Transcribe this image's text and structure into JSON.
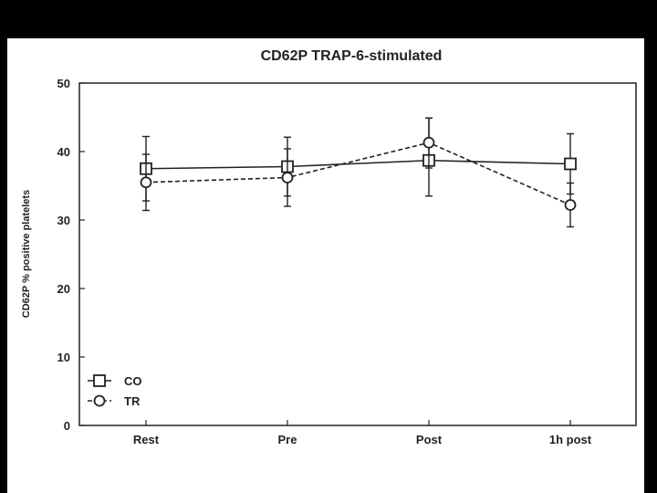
{
  "chart_data": {
    "type": "line",
    "title": "CD62P TRAP-6-stimulated",
    "xlabel": "",
    "ylabel": "CD62P % positive platelets",
    "categories": [
      "Rest",
      "Pre",
      "Post",
      "1h post"
    ],
    "ylim": [
      0,
      50
    ],
    "yticks": [
      0,
      10,
      20,
      30,
      40,
      50
    ],
    "grid": false,
    "legend_position": "bottom-left",
    "series": [
      {
        "name": "CO",
        "marker": "square",
        "line_style": "solid",
        "values": [
          37.5,
          37.8,
          38.7,
          38.2
        ],
        "error_low": [
          32.8,
          33.5,
          33.5,
          33.8
        ],
        "error_high": [
          42.2,
          42.1,
          44.9,
          42.6
        ]
      },
      {
        "name": "TR",
        "marker": "circle",
        "line_style": "dashed",
        "values": [
          35.5,
          36.2,
          41.3,
          32.2
        ],
        "error_low": [
          31.4,
          32.0,
          37.6,
          29.0
        ],
        "error_high": [
          39.6,
          40.4,
          44.9,
          35.4
        ]
      }
    ],
    "colors": {
      "line": "#222222",
      "background": "#ffffff",
      "frame": "#000000"
    }
  }
}
